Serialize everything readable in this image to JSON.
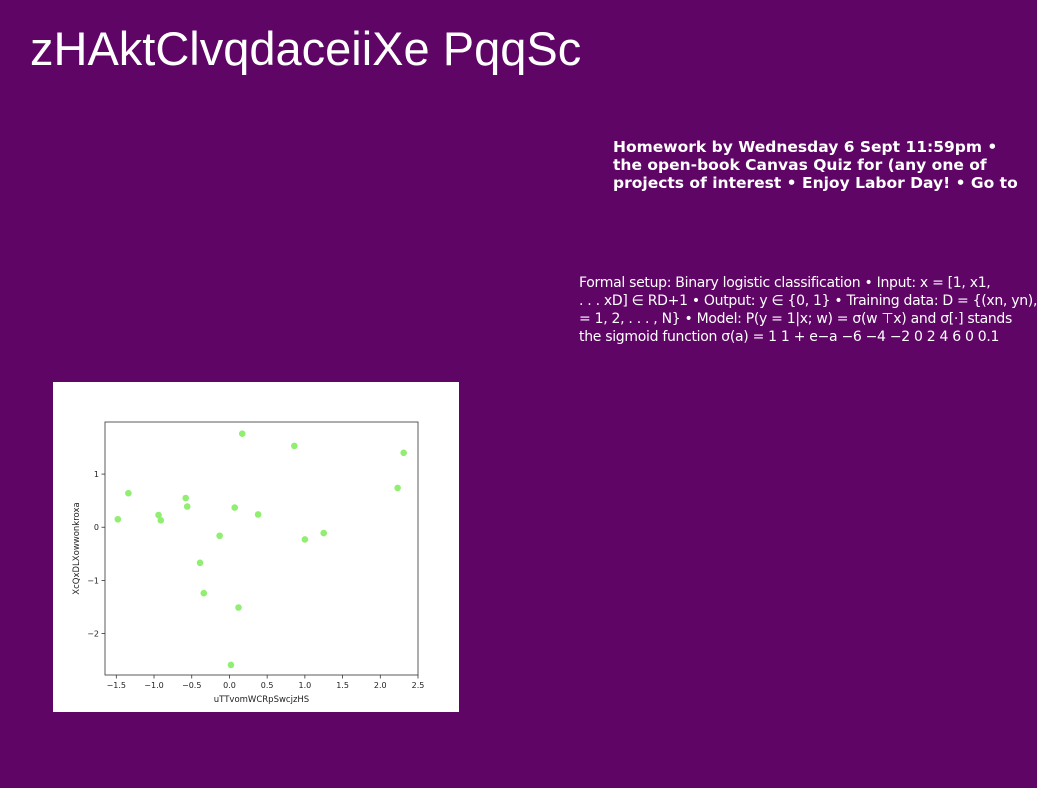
{
  "slide": {
    "title": "zHAktClvqdaceiiXe PqqSc",
    "announcement_lines": [
      "Homework by Wednesday 6 Sept 11:59pm •",
      "the open-book Canvas Quiz for (any one of",
      "projects of interest • Enjoy Labor Day! • Go to"
    ],
    "body_lines": [
      "Formal setup: Binary logistic classification • Input: x = [1, x1,",
      ". . . xD] ∈ RD+1 • Output: y ∈ {0, 1} • Training data: D = {(xn, yn),",
      "= 1, 2, . . . , N} • Model: P(y = 1|x; w) = σ(w ⊤x) and σ[·] stands",
      "the sigmoid function σ(a) = 1 1 + e−a −6 −4 −2 0 2 4 6 0 0.1"
    ]
  },
  "chart_data": {
    "type": "scatter",
    "title": "",
    "xlabel": "uTTvomWCRpSwcjzHS",
    "ylabel": "XcQxDLXowwonkroxa",
    "xlim": [
      -1.65,
      2.5
    ],
    "ylim": [
      -2.78,
      1.98
    ],
    "xticks": [
      -1.5,
      -1.0,
      -0.5,
      0.0,
      0.5,
      1.0,
      1.5,
      2.0,
      2.5
    ],
    "xtick_labels": [
      "−1.5",
      "−1.0",
      "−0.5",
      "0.0",
      "0.5",
      "1.0",
      "1.5",
      "2.0",
      "2.5"
    ],
    "yticks": [
      1,
      0,
      -1,
      -2
    ],
    "ytick_labels": [
      "1",
      "0",
      "−1",
      "−2"
    ],
    "grid": false,
    "marker_color": "#90ee70",
    "points": [
      {
        "x": -1.48,
        "y": 0.15
      },
      {
        "x": -1.34,
        "y": 0.64
      },
      {
        "x": -0.94,
        "y": 0.23
      },
      {
        "x": -0.91,
        "y": 0.13
      },
      {
        "x": -0.58,
        "y": 0.55
      },
      {
        "x": -0.56,
        "y": 0.39
      },
      {
        "x": -0.39,
        "y": -0.67
      },
      {
        "x": -0.34,
        "y": -1.24
      },
      {
        "x": -0.13,
        "y": -0.16
      },
      {
        "x": 0.02,
        "y": -2.59
      },
      {
        "x": 0.07,
        "y": 0.37
      },
      {
        "x": 0.12,
        "y": -1.51
      },
      {
        "x": 0.17,
        "y": 1.76
      },
      {
        "x": 0.38,
        "y": 0.24
      },
      {
        "x": 0.86,
        "y": 1.53
      },
      {
        "x": 1.0,
        "y": -0.23
      },
      {
        "x": 1.25,
        "y": -0.11
      },
      {
        "x": 2.23,
        "y": 0.74
      },
      {
        "x": 2.31,
        "y": 1.4
      }
    ]
  },
  "colors": {
    "background": "#5e0565",
    "text": "#ffffff",
    "plot_background": "#ffffff"
  }
}
